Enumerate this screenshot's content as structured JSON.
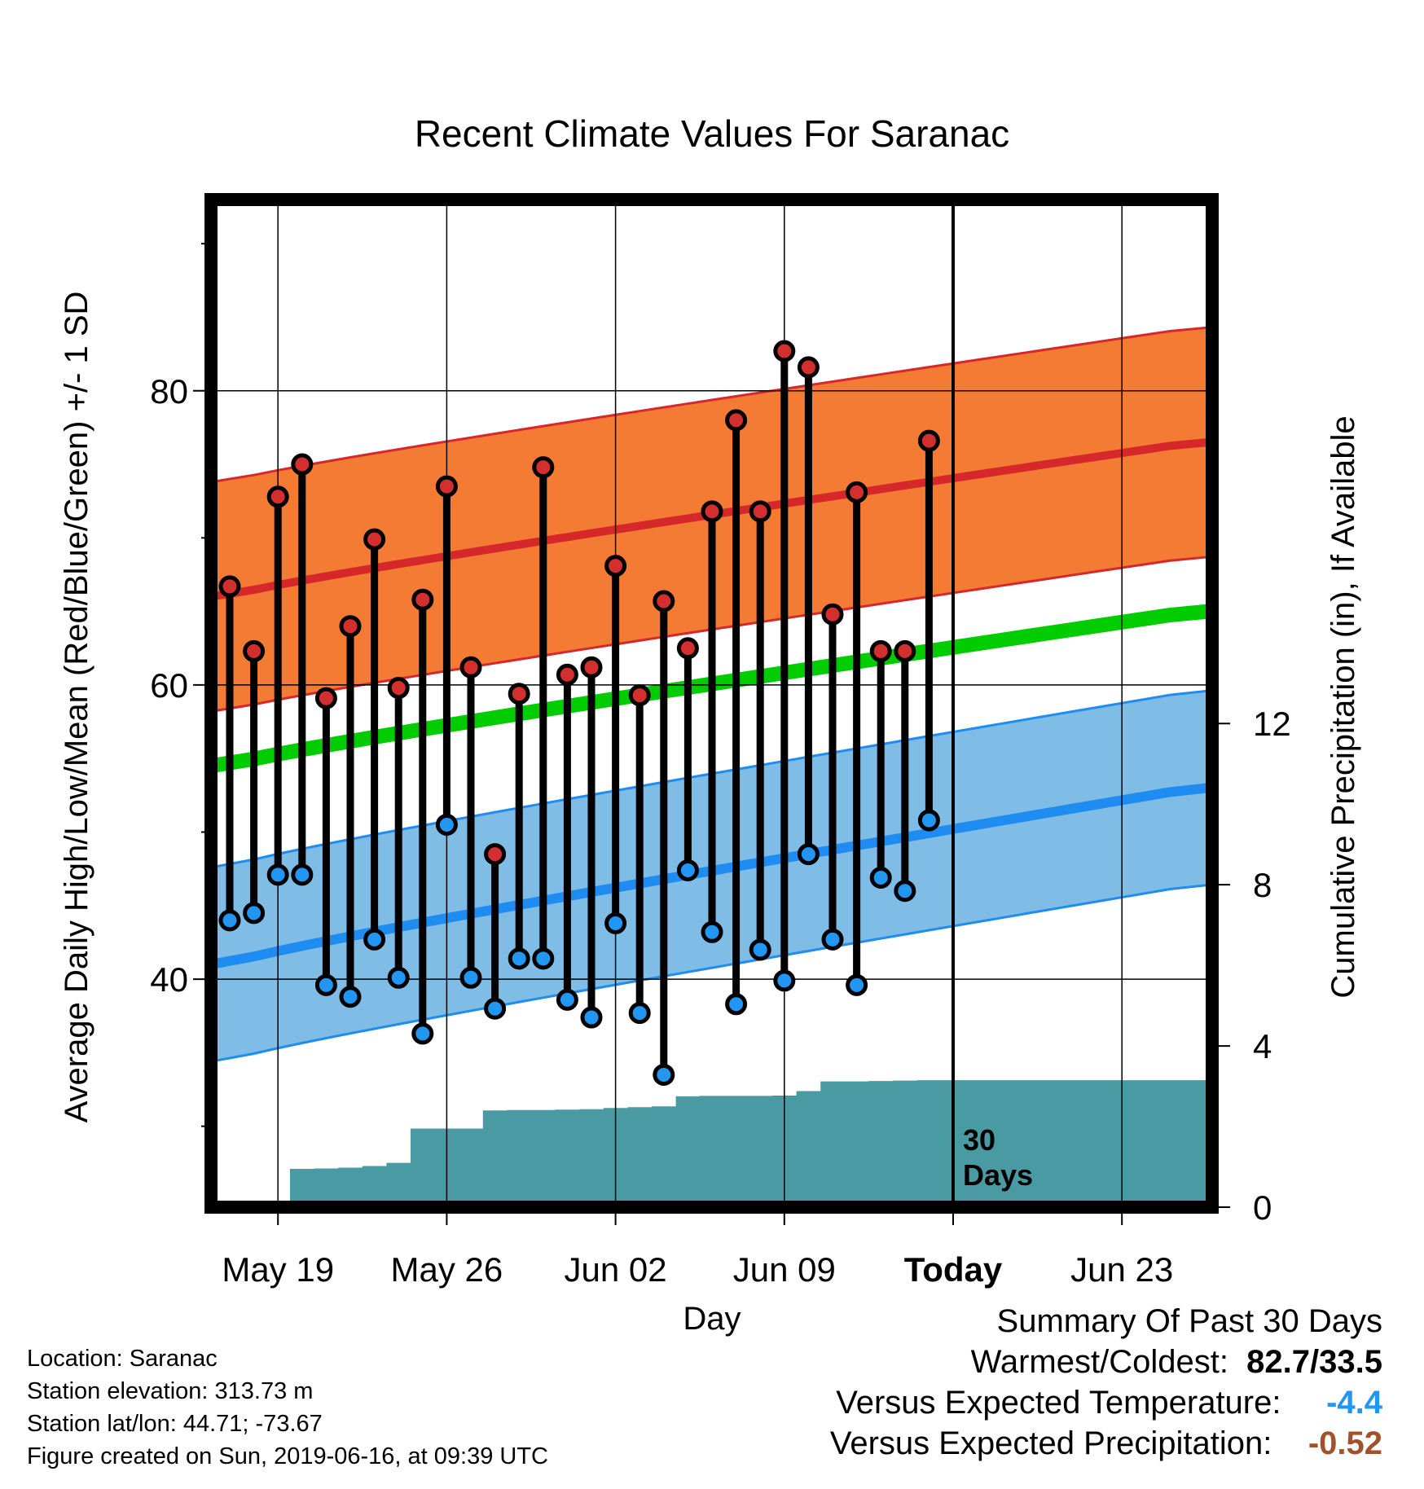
{
  "chart_data": {
    "type": "line",
    "title": "Recent Climate Values For Saranac",
    "xlabel": "Day",
    "ylabel": "Average Daily High/Low/Mean (Red/Blue/Green) +/- 1 SD",
    "y2label": "Cumulative Precipitation (in), If Available",
    "ylim": [
      24.5,
      93
    ],
    "y2lim": [
      0,
      25
    ],
    "x_tick_labels": [
      "May 19",
      "May 26",
      "Jun 02",
      "Jun 09",
      "Today",
      "Jun 23"
    ],
    "y_ticks": [
      40,
      60,
      80
    ],
    "y2_ticks": [
      0,
      4,
      8,
      12
    ],
    "days": [
      "May 17",
      "May 18",
      "May 19",
      "May 20",
      "May 21",
      "May 22",
      "May 23",
      "May 24",
      "May 25",
      "May 26",
      "May 27",
      "May 28",
      "May 29",
      "May 30",
      "May 31",
      "Jun 01",
      "Jun 02",
      "Jun 03",
      "Jun 04",
      "Jun 05",
      "Jun 06",
      "Jun 07",
      "Jun 08",
      "Jun 09",
      "Jun 10",
      "Jun 11",
      "Jun 12",
      "Jun 13",
      "Jun 14",
      "Jun 15",
      "Jun 16",
      "Jun 17",
      "Jun 18",
      "Jun 19",
      "Jun 20",
      "Jun 21",
      "Jun 22",
      "Jun 23",
      "Jun 24",
      "Jun 25",
      "Jun 26"
    ],
    "today": "Jun 16",
    "today_label": "Today",
    "observed_high": [
      66.7,
      62.3,
      72.8,
      75.0,
      59.1,
      64.0,
      69.9,
      59.8,
      65.8,
      73.5,
      61.2,
      48.5,
      59.4,
      74.8,
      60.7,
      61.2,
      68.1,
      59.3,
      65.7,
      62.5,
      71.8,
      78.0,
      71.8,
      82.7,
      81.6,
      64.8,
      73.1,
      62.3,
      62.3,
      76.6
    ],
    "observed_low": [
      44.0,
      44.5,
      47.1,
      47.1,
      39.6,
      38.8,
      42.7,
      40.1,
      36.3,
      50.5,
      40.1,
      38.0,
      41.4,
      41.4,
      38.6,
      37.4,
      43.8,
      37.7,
      33.5,
      47.4,
      43.2,
      38.3,
      42.0,
      39.9,
      48.5,
      42.7,
      39.6,
      46.9,
      46.0,
      50.8
    ],
    "normal_high": {
      "start": 66.0,
      "end": 76.5,
      "sd": 7.8
    },
    "normal_low": {
      "start": 41.0,
      "end": 53.0,
      "sd": 6.6
    },
    "normal_mean": {
      "start": 54.5,
      "end": 65.0
    },
    "cumulative_precip": [
      0.0,
      0.05,
      0.05,
      0.95,
      0.96,
      0.98,
      1.02,
      1.1,
      1.95,
      1.95,
      1.95,
      2.4,
      2.41,
      2.41,
      2.42,
      2.43,
      2.46,
      2.48,
      2.5,
      2.75,
      2.76,
      2.76,
      2.76,
      2.77,
      2.88,
      3.12,
      3.12,
      3.13,
      3.14,
      3.15,
      3.15
    ],
    "precip_window_label": "30",
    "precip_window_label2": "Days",
    "legend": "none",
    "grid": true,
    "colors": {
      "high_band": "#f47b34",
      "high_line": "#d6282b",
      "low_band": "#80bde6",
      "low_line": "#1e8cf0",
      "mean_line": "#00cc00",
      "precip": "#4a9aa3",
      "high_marker": "#d32f2f",
      "low_marker": "#2196f3",
      "frame": "#000000"
    }
  },
  "footer": {
    "location": "Location: Saranac",
    "elevation": "Station elevation: 313.73 m",
    "latlon": "Station lat/lon: 44.71; -73.67",
    "created": "Figure created on Sun, 2019-06-16, at 09:39 UTC"
  },
  "summary": {
    "title": "Summary Of Past 30 Days",
    "warm_cold_label": "Warmest/Coldest:",
    "warm_cold_value": "82.7/33.5",
    "temp_label": "Versus Expected Temperature:",
    "temp_value": "-4.4",
    "temp_color": "#2196f3",
    "precip_label": "Versus Expected Precipitation:",
    "precip_value": "-0.52",
    "precip_color": "#a0522d"
  }
}
